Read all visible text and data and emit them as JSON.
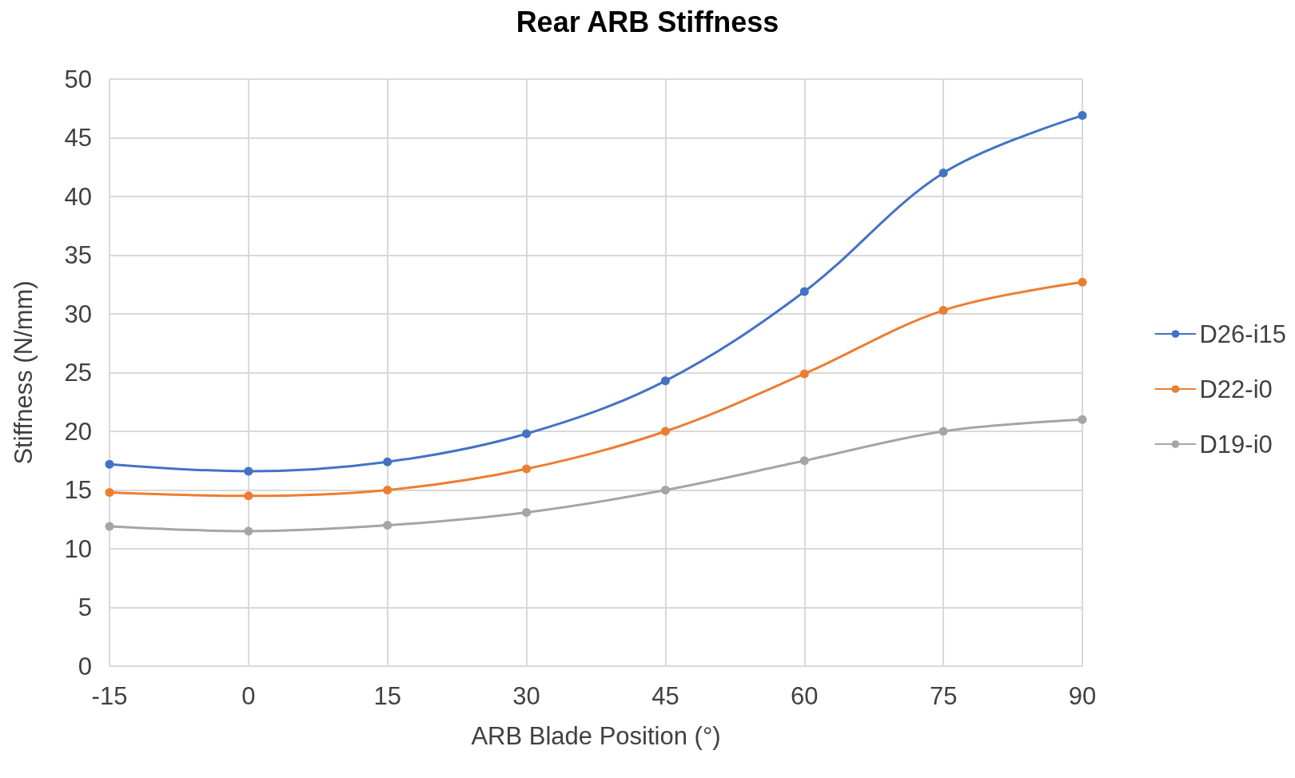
{
  "chart_data": {
    "type": "line",
    "title": "Rear ARB Stiffness",
    "xlabel": "ARB Blade Position (°)",
    "ylabel": "Stiffness (N/mm)",
    "x": [
      -15,
      0,
      15,
      30,
      45,
      60,
      75,
      90
    ],
    "series": [
      {
        "name": "D26-i15",
        "color": "#4472c4",
        "values": [
          17.2,
          16.6,
          17.4,
          19.8,
          24.3,
          31.9,
          42.0,
          46.9
        ]
      },
      {
        "name": "D22-i0",
        "color": "#ed7d31",
        "values": [
          14.8,
          14.5,
          15.0,
          16.8,
          20.0,
          24.9,
          30.3,
          32.7
        ]
      },
      {
        "name": "D19-i0",
        "color": "#a5a5a5",
        "values": [
          11.9,
          11.5,
          12.0,
          13.1,
          15.0,
          17.5,
          20.0,
          21.0
        ]
      }
    ],
    "xlim": [
      -15,
      90
    ],
    "xticks": [
      -15,
      0,
      15,
      30,
      45,
      60,
      75,
      90
    ],
    "ylim": [
      0,
      50
    ],
    "yticks": [
      0,
      5,
      10,
      15,
      20,
      25,
      30,
      35,
      40,
      45,
      50
    ],
    "grid": true,
    "legend": "right",
    "marker": "circle",
    "line_style": "solid"
  }
}
